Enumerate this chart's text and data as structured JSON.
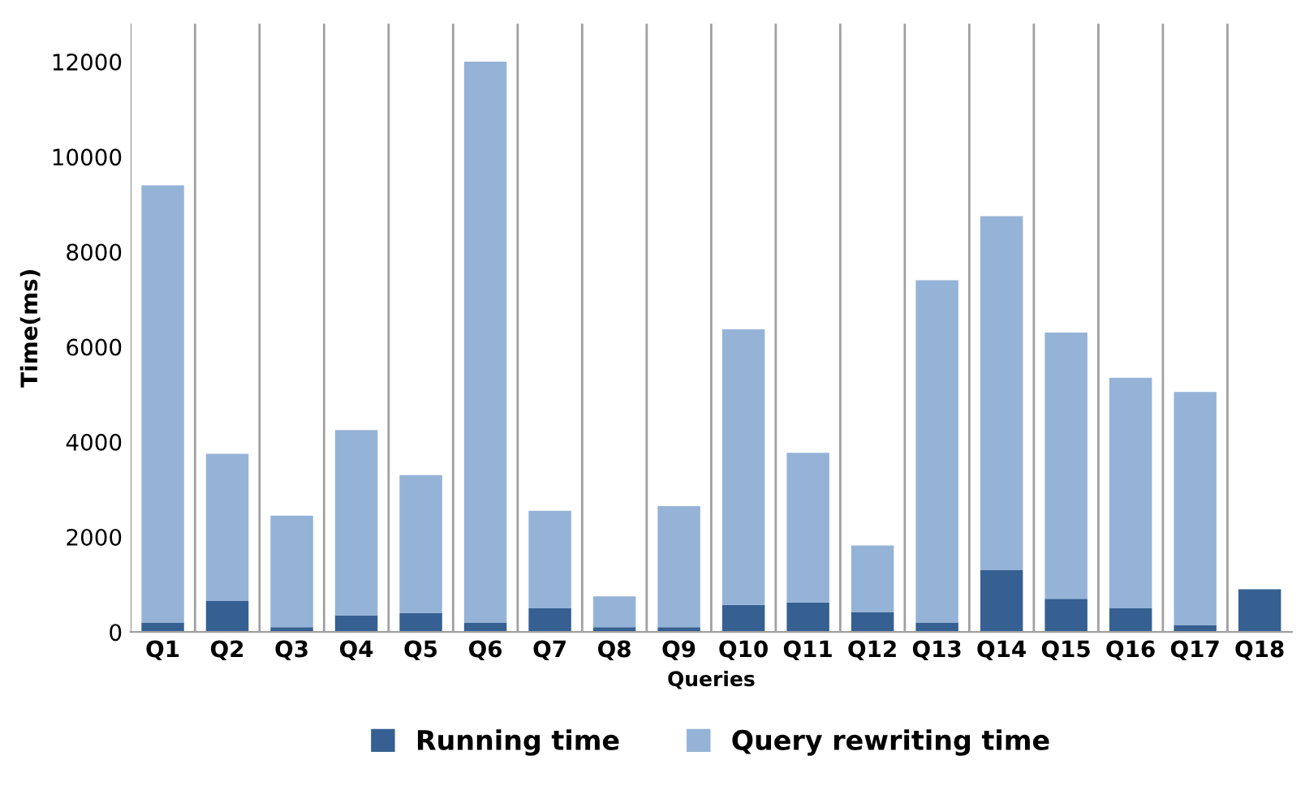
{
  "chart_data": {
    "type": "bar",
    "stacked": true,
    "xlabel": "Queries",
    "ylabel": "Time(ms)",
    "categories": [
      "Q1",
      "Q2",
      "Q3",
      "Q4",
      "Q5",
      "Q6",
      "Q7",
      "Q8",
      "Q9",
      "Q10",
      "Q11",
      "Q12",
      "Q13",
      "Q14",
      "Q15",
      "Q16",
      "Q17",
      "Q18"
    ],
    "series": [
      {
        "name": "Running time",
        "color": "#366092",
        "values": [
          200,
          650,
          100,
          350,
          400,
          200,
          500,
          100,
          100,
          570,
          620,
          420,
          200,
          1300,
          700,
          500,
          150,
          900
        ]
      },
      {
        "name": "Query rewriting time",
        "color": "#95b3d7",
        "values": [
          9200,
          3100,
          2350,
          3900,
          2900,
          11800,
          2050,
          650,
          2550,
          5800,
          3150,
          1400,
          7200,
          7450,
          5600,
          4850,
          4900,
          null
        ]
      }
    ],
    "ylim": [
      0,
      12800
    ],
    "yticks": [
      0,
      2000,
      4000,
      6000,
      8000,
      10000,
      12000
    ],
    "grid": "x",
    "legend": "bottom"
  }
}
